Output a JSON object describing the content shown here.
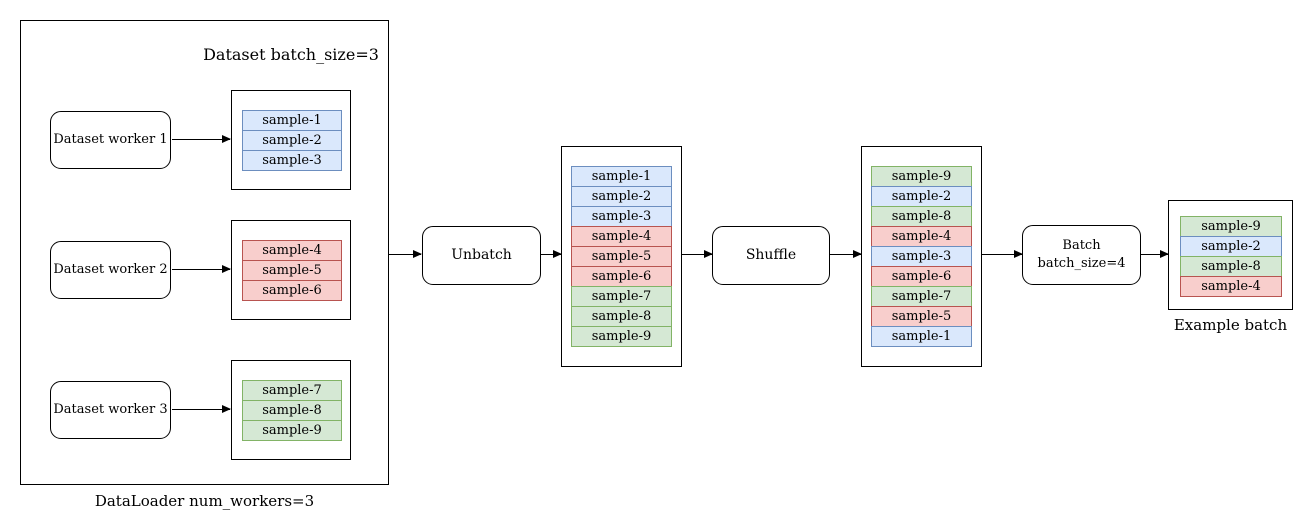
{
  "colors": {
    "blue": {
      "fill": "#dae8fc",
      "stroke": "#6c8ebf"
    },
    "red": {
      "fill": "#f8cecc",
      "stroke": "#b85450"
    },
    "green": {
      "fill": "#d5e8d4",
      "stroke": "#82b366"
    },
    "line": "#000000"
  },
  "dataloader": {
    "caption": "DataLoader num_workers=3",
    "dataset_title": "Dataset batch_size=3",
    "workers": [
      {
        "label": "Dataset worker 1",
        "samples": [
          {
            "label": "sample-1",
            "color": "blue"
          },
          {
            "label": "sample-2",
            "color": "blue"
          },
          {
            "label": "sample-3",
            "color": "blue"
          }
        ]
      },
      {
        "label": "Dataset worker 2",
        "samples": [
          {
            "label": "sample-4",
            "color": "red"
          },
          {
            "label": "sample-5",
            "color": "red"
          },
          {
            "label": "sample-6",
            "color": "red"
          }
        ]
      },
      {
        "label": "Dataset worker 3",
        "samples": [
          {
            "label": "sample-7",
            "color": "green"
          },
          {
            "label": "sample-8",
            "color": "green"
          },
          {
            "label": "sample-9",
            "color": "green"
          }
        ]
      }
    ]
  },
  "pipeline": {
    "unbatch_label": "Unbatch",
    "unbatched_samples": [
      {
        "label": "sample-1",
        "color": "blue"
      },
      {
        "label": "sample-2",
        "color": "blue"
      },
      {
        "label": "sample-3",
        "color": "blue"
      },
      {
        "label": "sample-4",
        "color": "red"
      },
      {
        "label": "sample-5",
        "color": "red"
      },
      {
        "label": "sample-6",
        "color": "red"
      },
      {
        "label": "sample-7",
        "color": "green"
      },
      {
        "label": "sample-8",
        "color": "green"
      },
      {
        "label": "sample-9",
        "color": "green"
      }
    ],
    "shuffle_label": "Shuffle",
    "shuffled_samples": [
      {
        "label": "sample-9",
        "color": "green"
      },
      {
        "label": "sample-2",
        "color": "blue"
      },
      {
        "label": "sample-8",
        "color": "green"
      },
      {
        "label": "sample-4",
        "color": "red"
      },
      {
        "label": "sample-3",
        "color": "blue"
      },
      {
        "label": "sample-6",
        "color": "red"
      },
      {
        "label": "sample-7",
        "color": "green"
      },
      {
        "label": "sample-5",
        "color": "red"
      },
      {
        "label": "sample-1",
        "color": "blue"
      }
    ],
    "batch_label_line1": "Batch",
    "batch_label_line2": "batch_size=4",
    "example_batch": {
      "caption": "Example batch",
      "samples": [
        {
          "label": "sample-9",
          "color": "green"
        },
        {
          "label": "sample-2",
          "color": "blue"
        },
        {
          "label": "sample-8",
          "color": "green"
        },
        {
          "label": "sample-4",
          "color": "red"
        }
      ]
    }
  }
}
